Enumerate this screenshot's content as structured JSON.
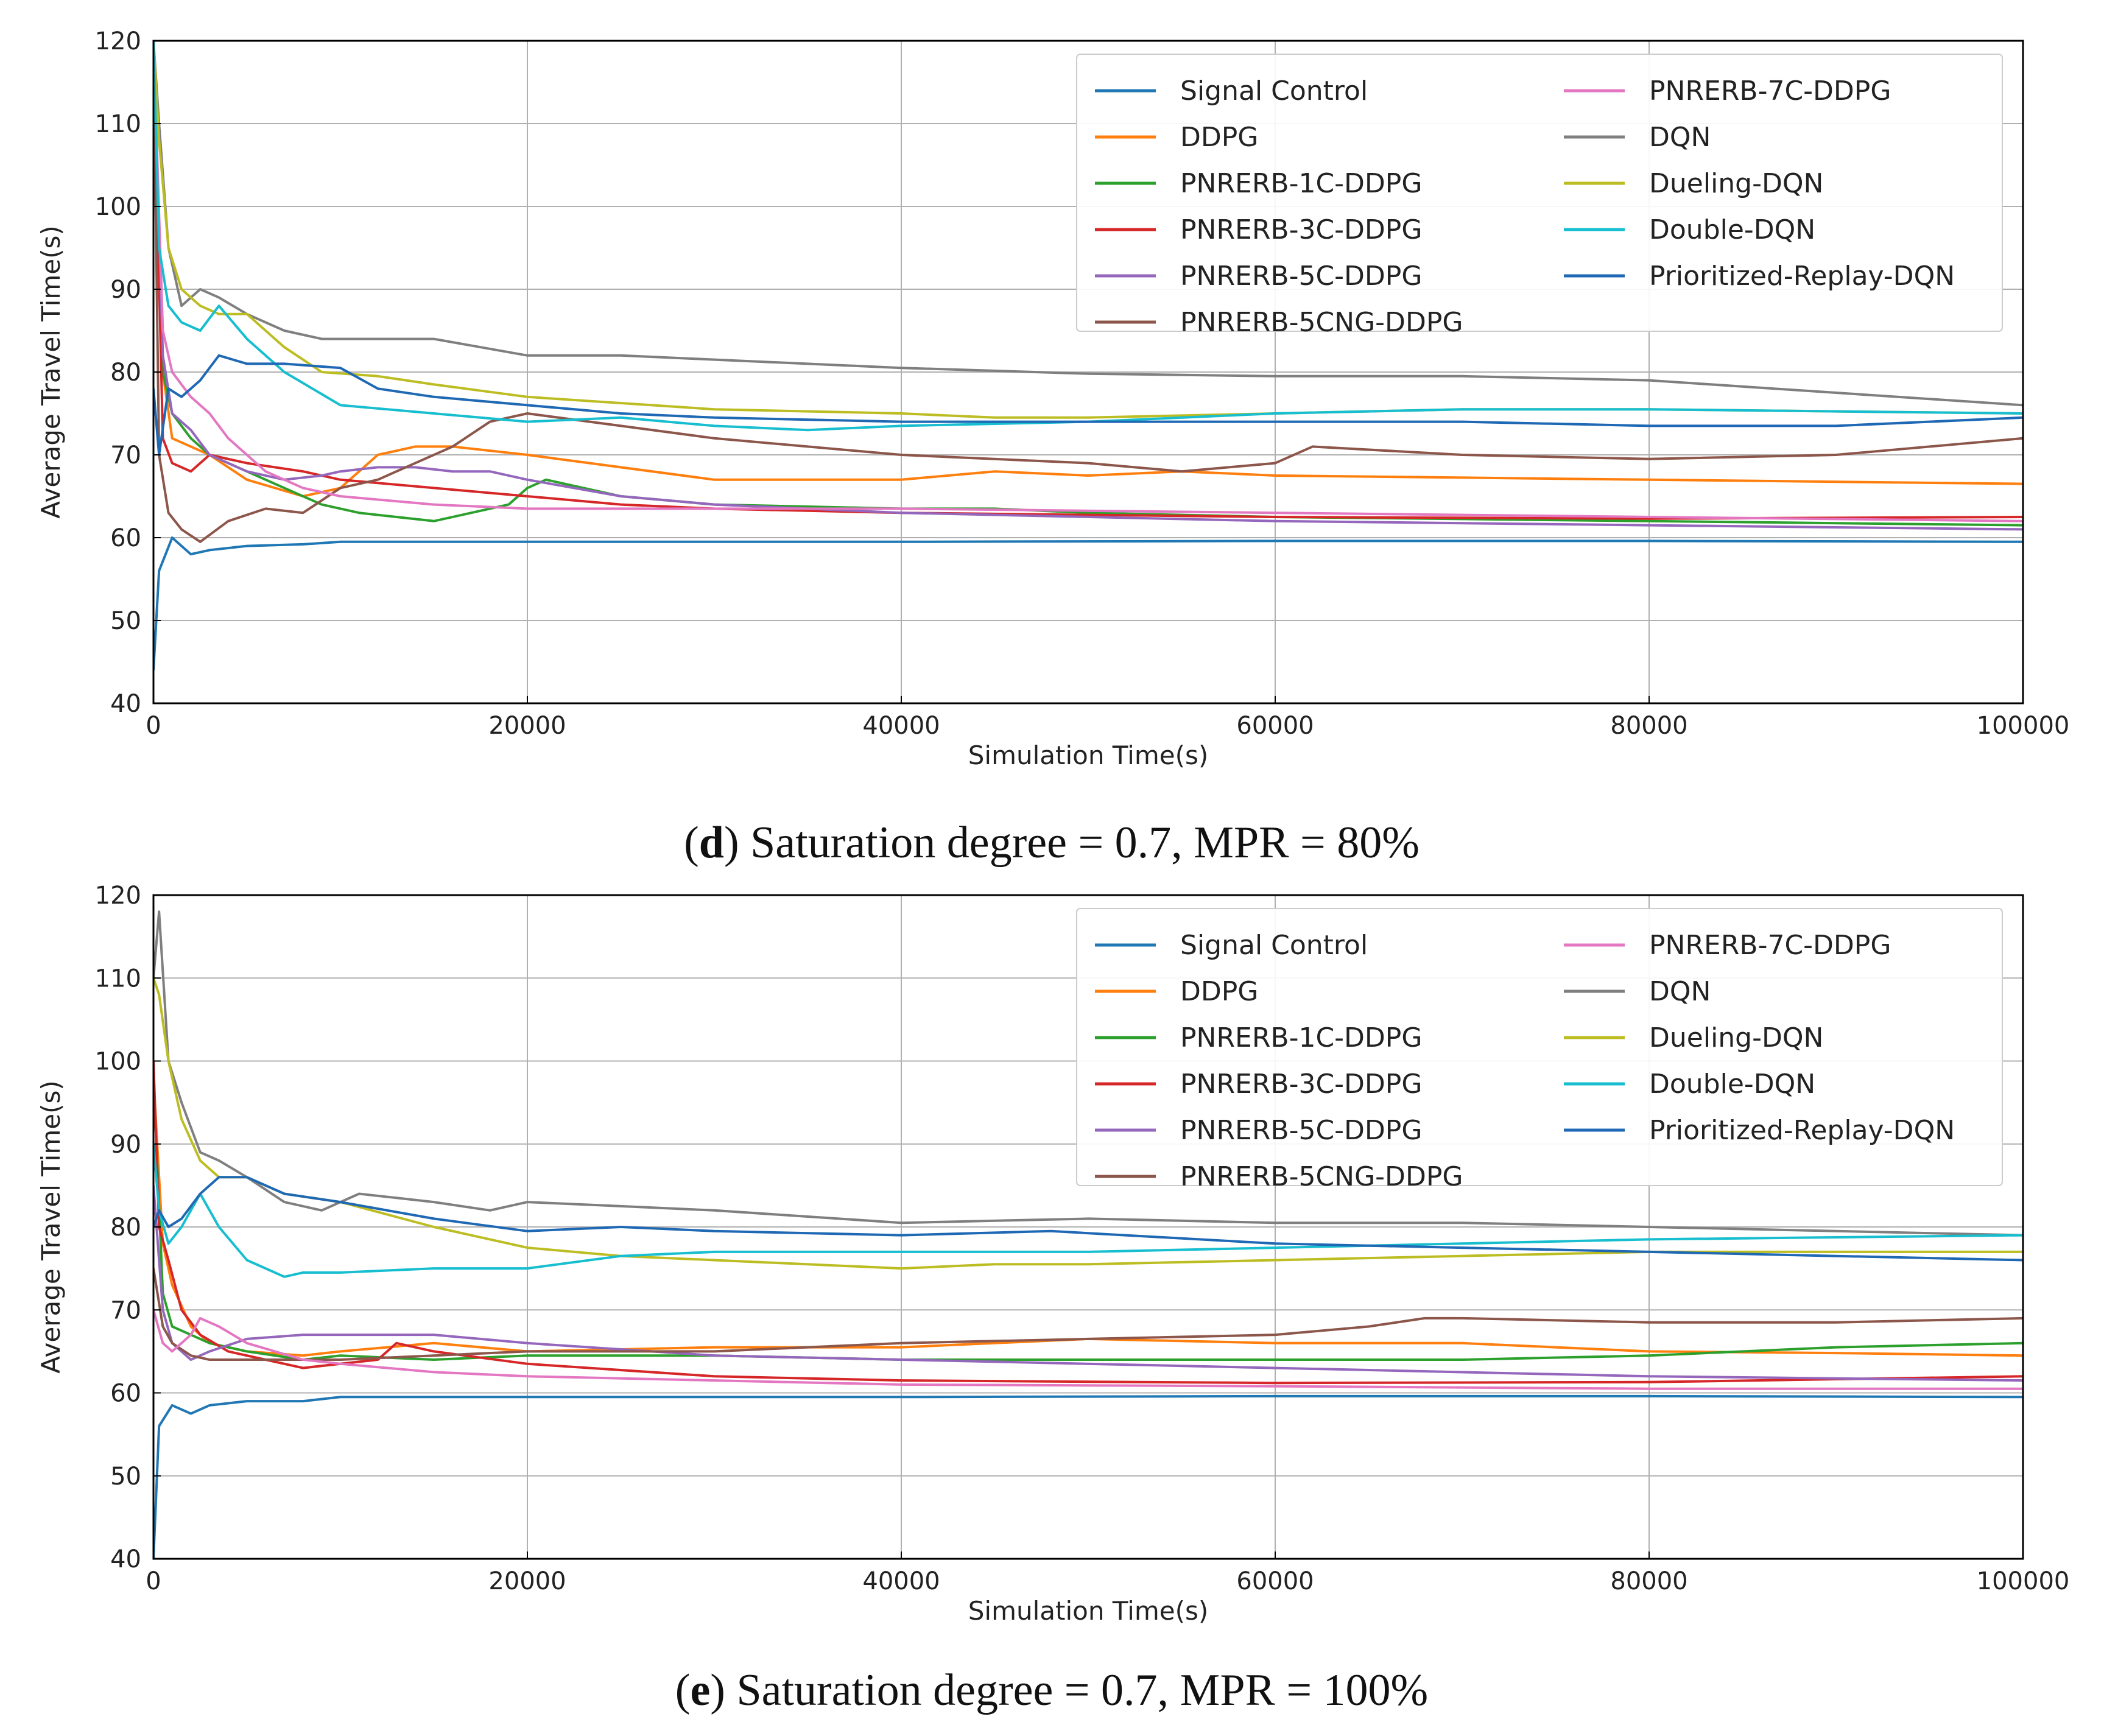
{
  "colors": {
    "Signal Control": "#1f77b4",
    "DDPG": "#ff7f0e",
    "PNRERB-1C-DDPG": "#2ca02c",
    "PNRERB-3C-DDPG": "#d62728",
    "PNRERB-5C-DDPG": "#9467bd",
    "PNRERB-5CNG-DDPG": "#8c564b",
    "PNRERB-7C-DDPG": "#e377c2",
    "DQN": "#7f7f7f",
    "Dueling-DQN": "#bcbd22",
    "Double-DQN": "#17becf",
    "Prioritized-Replay-DQN": "#1f68b4"
  },
  "chart_data": [
    {
      "type": "line",
      "panel": "d",
      "caption": {
        "letter": "d",
        "text": ") Saturation degree = 0.7, MPR = 80%"
      },
      "xlabel": "Simulation Time(s)",
      "ylabel": "Average Travel Time(s)",
      "xlim": [
        0,
        100000
      ],
      "ylim": [
        40,
        120
      ],
      "xticks": [
        0,
        20000,
        40000,
        60000,
        80000,
        100000
      ],
      "yticks": [
        40,
        50,
        60,
        70,
        80,
        90,
        100,
        110,
        120
      ],
      "legend_location": "upper-right",
      "series": [
        {
          "name": "Signal Control",
          "x": [
            0,
            300,
            1000,
            2000,
            3000,
            5000,
            8000,
            10000,
            20000,
            40000,
            60000,
            80000,
            100000
          ],
          "values": [
            44,
            56,
            60,
            58,
            58.5,
            59,
            59.2,
            59.5,
            59.5,
            59.5,
            59.6,
            59.6,
            59.5
          ]
        },
        {
          "name": "DDPG",
          "x": [
            0,
            500,
            1000,
            2000,
            3000,
            5000,
            8000,
            10000,
            12000,
            14000,
            16000,
            20000,
            30000,
            40000,
            45000,
            50000,
            55000,
            60000,
            80000,
            100000
          ],
          "values": [
            120,
            80,
            72,
            71,
            70,
            67,
            65,
            66,
            70,
            71,
            71,
            70,
            67,
            67,
            68,
            67.5,
            68,
            67.5,
            67,
            66.5
          ]
        },
        {
          "name": "PNRERB-1C-DDPG",
          "x": [
            0,
            500,
            1000,
            2000,
            3000,
            5000,
            7000,
            9000,
            11000,
            13000,
            15000,
            17000,
            19000,
            20000,
            21000,
            25000,
            30000,
            40000,
            45000,
            50000,
            60000,
            80000,
            100000
          ],
          "values": [
            120,
            80,
            75,
            72,
            70,
            68,
            66,
            64,
            63,
            62.5,
            62,
            63,
            64,
            66,
            67,
            65,
            64,
            63.5,
            63.5,
            63,
            62.5,
            62,
            61.5
          ]
        },
        {
          "name": "PNRERB-3C-DDPG",
          "x": [
            0,
            500,
            1000,
            2000,
            3000,
            5000,
            8000,
            10000,
            15000,
            20000,
            25000,
            30000,
            40000,
            60000,
            80000,
            100000
          ],
          "values": [
            120,
            72,
            69,
            68,
            70,
            69,
            68,
            67,
            66,
            65,
            64,
            63.5,
            63,
            62.5,
            62.3,
            62.5
          ]
        },
        {
          "name": "PNRERB-5C-DDPG",
          "x": [
            0,
            500,
            1000,
            2000,
            3000,
            5000,
            7000,
            9000,
            10000,
            12000,
            14000,
            16000,
            18000,
            20000,
            25000,
            30000,
            40000,
            60000,
            80000,
            100000
          ],
          "values": [
            120,
            82,
            75,
            73,
            70,
            68,
            67,
            67.5,
            68,
            68.5,
            68.5,
            68,
            68,
            67,
            65,
            64,
            63,
            62,
            61.5,
            61
          ]
        },
        {
          "name": "PNRERB-5CNG-DDPG",
          "x": [
            0,
            300,
            800,
            1500,
            2500,
            4000,
            6000,
            8000,
            10000,
            12000,
            14000,
            16000,
            18000,
            20000,
            25000,
            30000,
            35000,
            40000,
            50000,
            55000,
            60000,
            62000,
            70000,
            80000,
            90000,
            100000
          ],
          "values": [
            120,
            70,
            63,
            61,
            59.5,
            62,
            63.5,
            63,
            66,
            67,
            69,
            71,
            74,
            75,
            73.5,
            72,
            71,
            70,
            69,
            68,
            69,
            71,
            70,
            69.5,
            70,
            72
          ]
        },
        {
          "name": "PNRERB-7C-DDPG",
          "x": [
            0,
            500,
            1000,
            2000,
            3000,
            4000,
            6000,
            8000,
            10000,
            15000,
            20000,
            30000,
            40000,
            60000,
            80000,
            100000
          ],
          "values": [
            120,
            85,
            80,
            77,
            75,
            72,
            68,
            66,
            65,
            64,
            63.5,
            63.5,
            63.5,
            63,
            62.5,
            62
          ]
        },
        {
          "name": "DQN",
          "x": [
            0,
            300,
            800,
            1500,
            2500,
            3500,
            5000,
            7000,
            9000,
            11000,
            13000,
            15000,
            20000,
            25000,
            30000,
            40000,
            50000,
            60000,
            70000,
            80000,
            90000,
            100000
          ],
          "values": [
            120,
            110,
            95,
            88,
            90,
            89,
            87,
            85,
            84,
            84,
            84,
            84,
            82,
            82,
            81.5,
            80.5,
            79.8,
            79.5,
            79.5,
            79,
            77.5,
            76
          ]
        },
        {
          "name": "Dueling-DQN",
          "x": [
            0,
            300,
            800,
            1500,
            2500,
            3500,
            5000,
            7000,
            9000,
            12000,
            15000,
            20000,
            30000,
            40000,
            45000,
            50000,
            60000,
            70000,
            80000,
            100000
          ],
          "values": [
            120,
            108,
            95,
            90,
            88,
            87,
            87,
            83,
            80,
            79.5,
            78.5,
            77,
            75.5,
            75,
            74.5,
            74.5,
            75,
            75.5,
            75.5,
            75
          ]
        },
        {
          "name": "Double-DQN",
          "x": [
            0,
            300,
            800,
            1500,
            2500,
            3500,
            5000,
            7000,
            10000,
            15000,
            20000,
            25000,
            30000,
            35000,
            40000,
            50000,
            60000,
            70000,
            80000,
            100000
          ],
          "values": [
            120,
            95,
            88,
            86,
            85,
            88,
            84,
            80,
            76,
            75,
            74,
            74.5,
            73.5,
            73,
            73.5,
            74,
            75,
            75.5,
            75.5,
            75
          ]
        },
        {
          "name": "Prioritized-Replay-DQN",
          "x": [
            0,
            300,
            800,
            1500,
            2500,
            3500,
            5000,
            7000,
            10000,
            12000,
            15000,
            20000,
            25000,
            30000,
            40000,
            50000,
            60000,
            70000,
            80000,
            90000,
            100000
          ],
          "values": [
            78,
            70,
            78,
            77,
            79,
            82,
            81,
            81,
            80.5,
            78,
            77,
            76,
            75,
            74.5,
            74,
            74,
            74,
            74,
            73.5,
            73.5,
            74.5
          ]
        }
      ]
    },
    {
      "type": "line",
      "panel": "e",
      "caption": {
        "letter": "e",
        "text": ") Saturation degree = 0.7, MPR = 100%"
      },
      "xlabel": "Simulation Time(s)",
      "ylabel": "Average Travel Time(s)",
      "xlim": [
        0,
        100000
      ],
      "ylim": [
        40,
        120
      ],
      "xticks": [
        0,
        20000,
        40000,
        60000,
        80000,
        100000
      ],
      "yticks": [
        40,
        50,
        60,
        70,
        80,
        90,
        100,
        110,
        120
      ],
      "legend_location": "upper-right",
      "series": [
        {
          "name": "Signal Control",
          "x": [
            0,
            300,
            1000,
            2000,
            3000,
            5000,
            8000,
            10000,
            20000,
            40000,
            60000,
            80000,
            100000
          ],
          "values": [
            40,
            56,
            58.5,
            57.5,
            58.5,
            59,
            59,
            59.5,
            59.5,
            59.5,
            59.6,
            59.6,
            59.5
          ]
        },
        {
          "name": "DDPG",
          "x": [
            0,
            500,
            1000,
            2000,
            3000,
            5000,
            8000,
            10000,
            15000,
            20000,
            30000,
            40000,
            50000,
            60000,
            70000,
            80000,
            90000,
            100000
          ],
          "values": [
            98,
            78,
            73,
            68,
            66,
            65,
            64.5,
            65,
            66,
            65,
            65.5,
            65.5,
            66.5,
            66,
            66,
            65,
            64.8,
            64.5
          ]
        },
        {
          "name": "PNRERB-1C-DDPG",
          "x": [
            0,
            500,
            1000,
            2000,
            3000,
            5000,
            8000,
            10000,
            15000,
            20000,
            30000,
            40000,
            50000,
            60000,
            70000,
            80000,
            90000,
            100000
          ],
          "values": [
            98,
            72,
            68,
            67,
            66,
            65,
            64,
            64.5,
            64,
            64.5,
            64.5,
            64,
            64,
            64,
            64,
            64.5,
            65.5,
            66
          ]
        },
        {
          "name": "PNRERB-3C-DDPG",
          "x": [
            0,
            300,
            800,
            1500,
            2500,
            4000,
            6000,
            8000,
            10000,
            12000,
            13000,
            15000,
            20000,
            30000,
            40000,
            60000,
            80000,
            100000
          ],
          "values": [
            100,
            80,
            76,
            70,
            67,
            65,
            64,
            63,
            63.5,
            64,
            66,
            65,
            63.5,
            62,
            61.5,
            61.2,
            61.3,
            62
          ]
        },
        {
          "name": "PNRERB-5C-DDPG",
          "x": [
            0,
            500,
            1000,
            2000,
            3000,
            5000,
            8000,
            10000,
            15000,
            20000,
            30000,
            40000,
            60000,
            80000,
            100000
          ],
          "values": [
            85,
            70,
            66,
            64,
            65,
            66.5,
            67,
            67,
            67,
            66,
            64.5,
            64,
            63,
            62,
            61.5
          ]
        },
        {
          "name": "PNRERB-5CNG-DDPG",
          "x": [
            0,
            500,
            1000,
            2000,
            3000,
            5000,
            8000,
            10000,
            15000,
            20000,
            30000,
            40000,
            50000,
            60000,
            65000,
            68000,
            70000,
            80000,
            90000,
            100000
          ],
          "values": [
            75,
            68,
            66,
            64.5,
            64,
            64,
            64,
            64,
            64.5,
            65,
            65,
            66,
            66.5,
            67,
            68,
            69,
            69,
            68.5,
            68.5,
            69
          ]
        },
        {
          "name": "PNRERB-7C-DDPG",
          "x": [
            0,
            500,
            1000,
            2000,
            2500,
            3500,
            5000,
            8000,
            10000,
            15000,
            20000,
            30000,
            40000,
            60000,
            80000,
            100000
          ],
          "values": [
            70,
            66,
            65,
            67,
            69,
            68,
            66,
            64,
            63.5,
            62.5,
            62,
            61.5,
            61,
            60.8,
            60.5,
            60.5
          ]
        },
        {
          "name": "DQN",
          "x": [
            0,
            300,
            800,
            1500,
            2500,
            3500,
            5000,
            7000,
            9000,
            11000,
            13000,
            15000,
            18000,
            20000,
            25000,
            30000,
            40000,
            50000,
            60000,
            70000,
            80000,
            90000,
            100000
          ],
          "values": [
            110,
            118,
            100,
            95,
            89,
            88,
            86,
            83,
            82,
            84,
            83.5,
            83,
            82,
            83,
            82.5,
            82,
            80.5,
            81,
            80.5,
            80.5,
            80,
            79.5,
            79
          ]
        },
        {
          "name": "Dueling-DQN",
          "x": [
            0,
            300,
            800,
            1500,
            2500,
            3500,
            5000,
            7000,
            10000,
            15000,
            20000,
            25000,
            30000,
            40000,
            45000,
            50000,
            60000,
            70000,
            80000,
            90000,
            100000
          ],
          "values": [
            110,
            108,
            100,
            93,
            88,
            86,
            86,
            84,
            83,
            80,
            77.5,
            76.5,
            76,
            75,
            75.5,
            75.5,
            76,
            76.5,
            77,
            77,
            77
          ]
        },
        {
          "name": "Double-DQN",
          "x": [
            0,
            300,
            800,
            1500,
            2500,
            3500,
            5000,
            7000,
            8000,
            10000,
            15000,
            20000,
            25000,
            30000,
            40000,
            50000,
            60000,
            70000,
            80000,
            100000
          ],
          "values": [
            90,
            82,
            78,
            80,
            84,
            80,
            76,
            74,
            74.5,
            74.5,
            75,
            75,
            76.5,
            77,
            77,
            77,
            77.5,
            78,
            78.5,
            79
          ]
        },
        {
          "name": "Prioritized-Replay-DQN",
          "x": [
            0,
            300,
            800,
            1500,
            2500,
            3500,
            5000,
            7000,
            10000,
            15000,
            20000,
            25000,
            30000,
            40000,
            48000,
            60000,
            70000,
            80000,
            90000,
            100000
          ],
          "values": [
            80,
            82,
            80,
            81,
            84,
            86,
            86,
            84,
            83,
            81,
            79.5,
            80,
            79.5,
            79,
            79.5,
            78,
            77.5,
            77,
            76.5,
            76
          ]
        }
      ]
    }
  ]
}
